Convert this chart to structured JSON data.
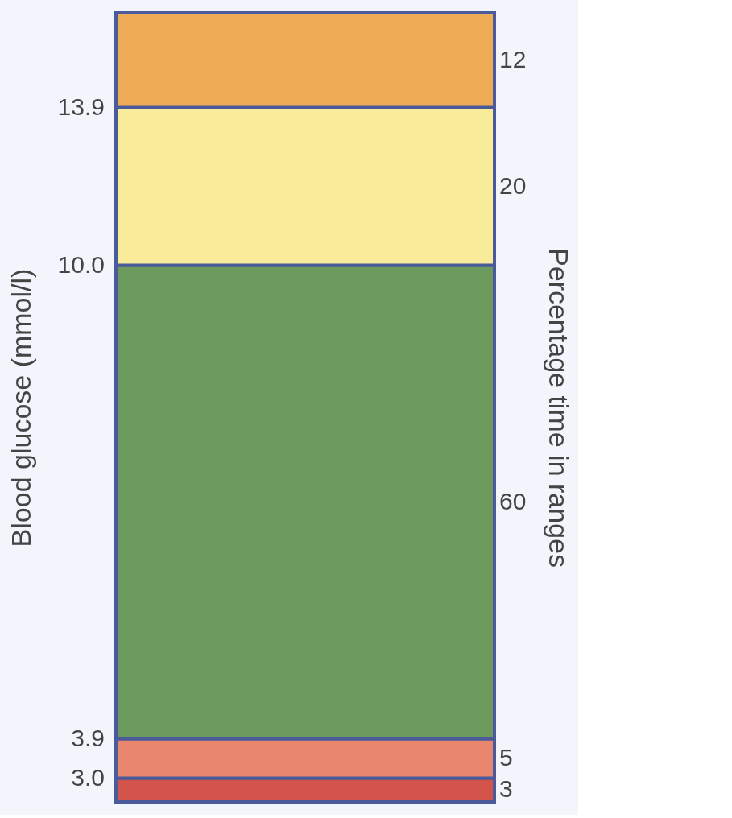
{
  "chart_data": {
    "type": "bar",
    "stacked": true,
    "categories": [
      null
    ],
    "ylabel": "Blood glucose (mmol/l)",
    "y2label": "Percentage time in ranges",
    "ylim": [
      0,
      100
    ],
    "annotations": [
      "3.0",
      "3.9",
      "10.0",
      "13.9"
    ],
    "series": [
      {
        "color": "#d2544a",
        "values": [
          3
        ]
      },
      {
        "color": "#e8876e",
        "values": [
          5
        ]
      },
      {
        "color": "#6b9a5c",
        "values": [
          60
        ]
      },
      {
        "color": "#f8eb9a",
        "values": [
          20
        ]
      },
      {
        "color": "#eeab55",
        "values": [
          12
        ]
      }
    ],
    "data_labels": true
  }
}
